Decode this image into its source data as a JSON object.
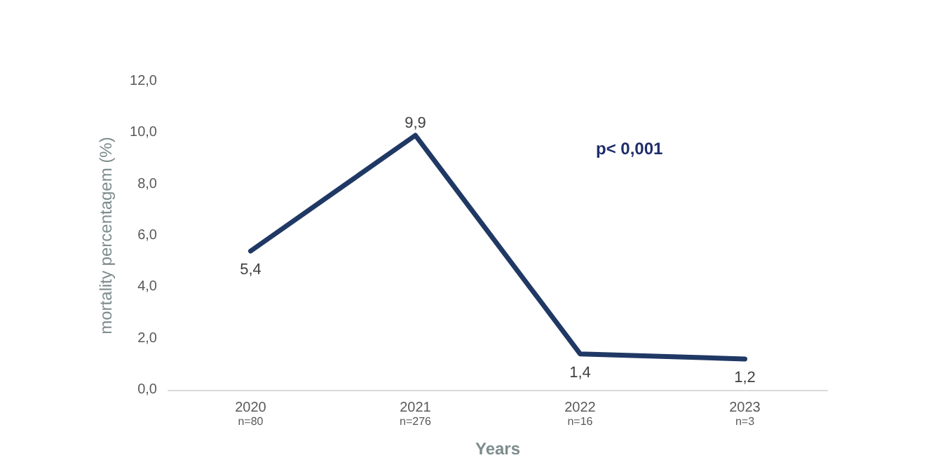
{
  "chart_data": {
    "type": "line",
    "xlabel": "Years",
    "ylabel": "mortality percentagem (%)",
    "categories": [
      "2020\nn=80",
      "2021\nn=276",
      "2022\nn=16",
      "2023\nn=3"
    ],
    "series": [
      {
        "color": "#203864",
        "values": [
          5.4,
          9.9,
          1.4,
          1.2
        ],
        "value_labels": [
          "5,4",
          "9,9",
          "1,4",
          "1,2"
        ]
      }
    ],
    "ylim": [
      0,
      12
    ],
    "yticks": [
      {
        "value": 0,
        "label": "0,0"
      },
      {
        "value": 2,
        "label": "2,0"
      },
      {
        "value": 4,
        "label": "4,0"
      },
      {
        "value": 6,
        "label": "6,0"
      },
      {
        "value": 8,
        "label": "8,0"
      },
      {
        "value": 10,
        "label": "10,0"
      },
      {
        "value": 12,
        "label": "12,0"
      }
    ],
    "annotations": [
      "p< 0,001"
    ],
    "grid": false,
    "marker": "none",
    "line_style": "solid"
  }
}
